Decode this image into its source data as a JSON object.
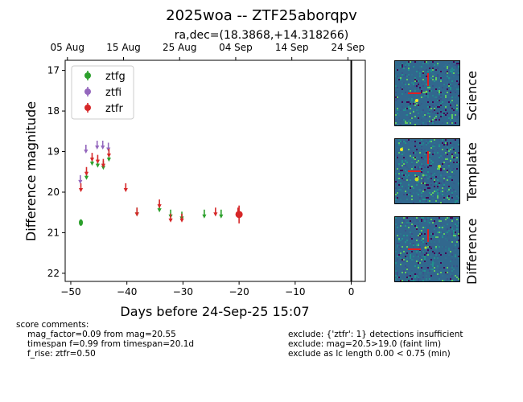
{
  "title": "2025woa -- ZTF25aborqpv",
  "subtitle": "ra,dec=(18.3868,+14.318266)",
  "chart_data": {
    "type": "scatter",
    "xlabel": "Days before 24-Sep-25 15:07",
    "ylabel": "Difference magnitude",
    "xlim": [
      -51,
      2.5
    ],
    "ylim": [
      22.2,
      16.75
    ],
    "y_inverted": true,
    "x_ticks": [
      -50,
      -40,
      -30,
      -20,
      -10,
      0
    ],
    "y_ticks": [
      17,
      18,
      19,
      20,
      21,
      22
    ],
    "top_axis_ticks": [
      {
        "label": "05 Aug",
        "x": -50.6
      },
      {
        "label": "15 Aug",
        "x": -40.6
      },
      {
        "label": "25 Aug",
        "x": -30.6
      },
      {
        "label": "04 Sep",
        "x": -20.6
      },
      {
        "label": "14 Sep",
        "x": -10.6
      },
      {
        "label": "24 Sep",
        "x": -0.6
      }
    ],
    "vline_x": 0,
    "legend_position": "upper left",
    "series": [
      {
        "name": "ztfg",
        "color": "#2ca02c",
        "detections": [
          [
            -48.2,
            20.75,
            0.08
          ]
        ],
        "upper_limits": [
          [
            -47.2,
            19.6
          ],
          [
            -46.2,
            19.25
          ],
          [
            -45.2,
            19.3
          ],
          [
            -44.2,
            19.35
          ],
          [
            -43.2,
            19.15
          ],
          [
            -38.2,
            20.5
          ],
          [
            -34.2,
            20.4
          ],
          [
            -32.2,
            20.55
          ],
          [
            -30.2,
            20.6
          ],
          [
            -26.2,
            20.55
          ],
          [
            -23.2,
            20.55
          ]
        ]
      },
      {
        "name": "ztfi",
        "color": "#9467bd",
        "detections": [],
        "upper_limits": [
          [
            -48.3,
            19.7
          ],
          [
            -47.3,
            18.95
          ],
          [
            -45.3,
            18.85
          ],
          [
            -44.3,
            18.85
          ],
          [
            -43.3,
            18.9
          ]
        ]
      },
      {
        "name": "ztfr",
        "color": "#d62728",
        "detections": [
          [
            -20.0,
            20.55,
            0.22
          ]
        ],
        "upper_limits": [
          [
            -48.2,
            19.9
          ],
          [
            -47.2,
            19.5
          ],
          [
            -46.2,
            19.15
          ],
          [
            -45.2,
            19.2
          ],
          [
            -44.2,
            19.3
          ],
          [
            -43.2,
            19.05
          ],
          [
            -40.2,
            19.9
          ],
          [
            -38.2,
            20.5
          ],
          [
            -34.2,
            20.3
          ],
          [
            -32.2,
            20.65
          ],
          [
            -30.2,
            20.65
          ],
          [
            -24.2,
            20.5
          ],
          [
            -20.2,
            20.5
          ]
        ]
      }
    ]
  },
  "panels": [
    {
      "label": "Science"
    },
    {
      "label": "Template"
    },
    {
      "label": "Difference"
    }
  ],
  "comments_left": [
    "score comments:",
    "mag_factor=0.09 from mag=20.55",
    "timespan f=0.99 from timespan=20.1d",
    "f_rise: ztfr=0.50"
  ],
  "comments_right": [
    "exclude: {'ztfr': 1} detections insufficient",
    "exclude: mag=20.5>19.0 (faint lim)",
    "exclude as lc length 0.00 < 0.75 (min)"
  ]
}
